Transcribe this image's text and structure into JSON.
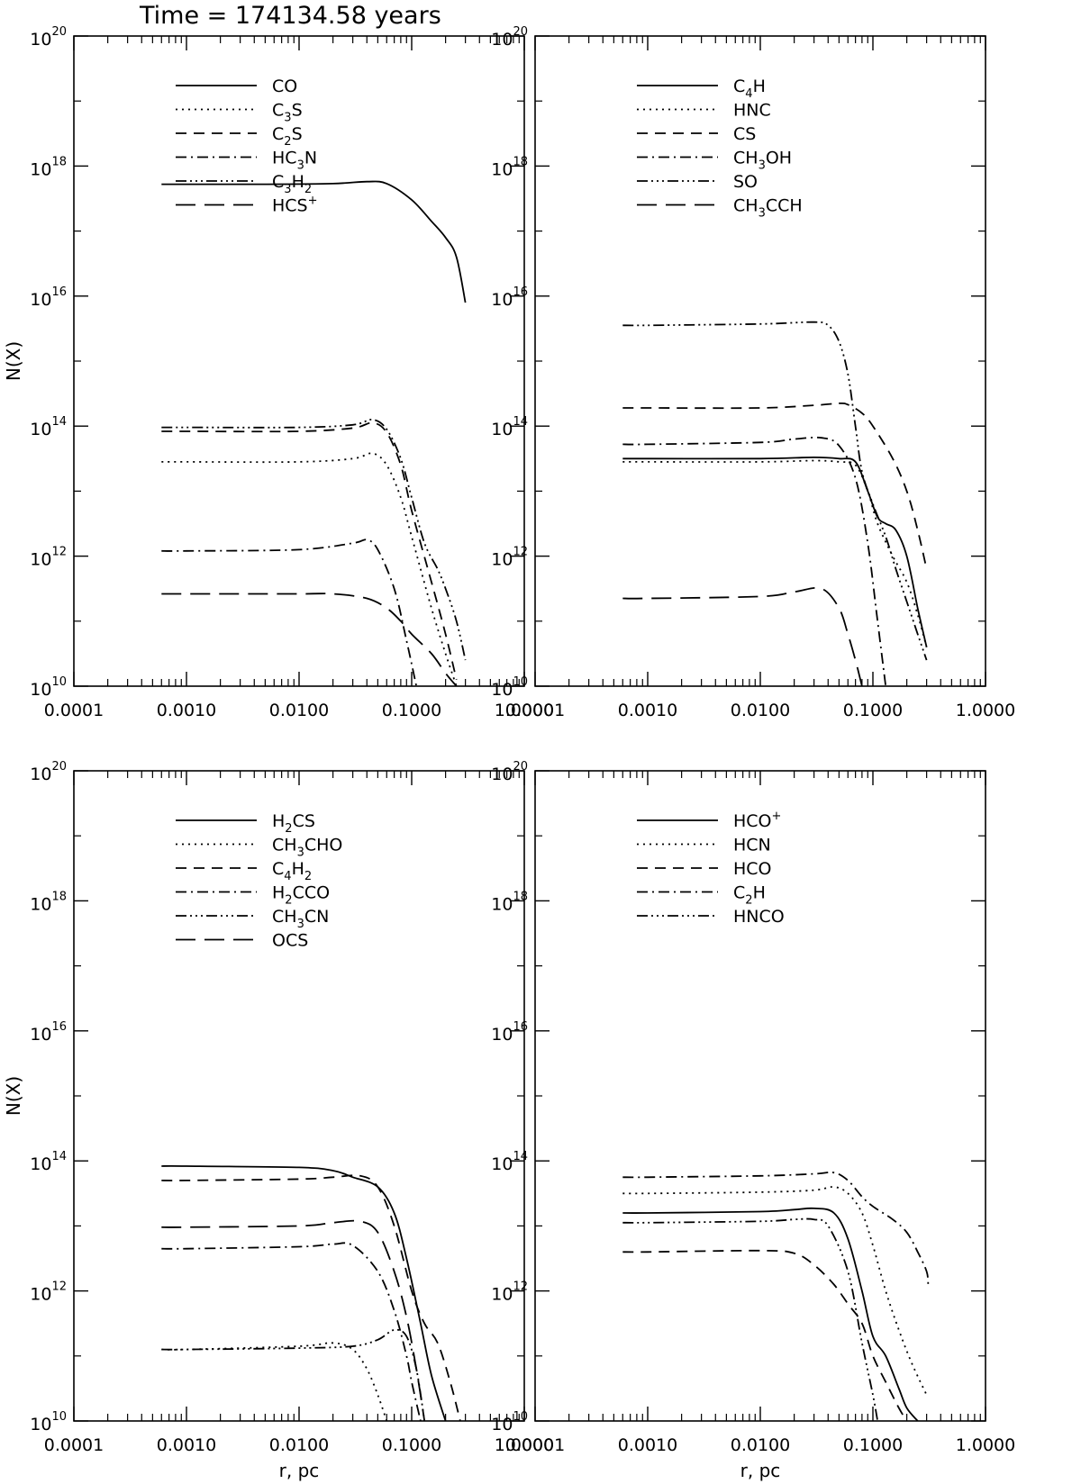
{
  "title": "Time = 174134.58 years",
  "chart_data": [
    {
      "type": "line",
      "xscale": "log",
      "yscale": "log",
      "xlim": [
        0.0001,
        1.0
      ],
      "ylim": [
        10000000000.0,
        1e+20
      ],
      "xlabel": "",
      "ylabel": "N(X)",
      "xticklabels": [
        "0.0001",
        "0.0010",
        "0.0100",
        "0.1000",
        "1.0000"
      ],
      "yticklabels": [
        "20",
        "18",
        "16",
        "14",
        "12",
        "10"
      ],
      "series": [
        {
          "name": "CO",
          "sub": "",
          "style": "solid",
          "x": [
            0.0006,
            0.001,
            0.005,
            0.02,
            0.04,
            0.06,
            0.1,
            0.15,
            0.2,
            0.25,
            0.3
          ],
          "y": [
            17.72,
            17.72,
            17.72,
            17.73,
            17.76,
            17.73,
            17.48,
            17.15,
            16.9,
            16.6,
            15.9
          ]
        },
        {
          "name": "C",
          "sub": "3",
          "tail": "S",
          "style": "dotted",
          "x": [
            0.0006,
            0.001,
            0.01,
            0.03,
            0.045,
            0.06,
            0.08,
            0.1,
            0.15,
            0.2,
            0.25
          ],
          "y": [
            13.45,
            13.45,
            13.45,
            13.5,
            13.58,
            13.4,
            12.9,
            12.3,
            11.2,
            10.5,
            10.0
          ]
        },
        {
          "name": "C",
          "sub": "2",
          "tail": "S",
          "style": "dashed",
          "x": [
            0.0006,
            0.001,
            0.01,
            0.03,
            0.045,
            0.06,
            0.08,
            0.1,
            0.15,
            0.2,
            0.25
          ],
          "y": [
            13.92,
            13.92,
            13.92,
            13.97,
            14.05,
            13.9,
            13.4,
            12.7,
            11.6,
            10.8,
            10.1
          ]
        },
        {
          "name": "HC",
          "sub": "3",
          "tail": "N",
          "style": "dashdot",
          "x": [
            0.0006,
            0.001,
            0.01,
            0.03,
            0.04,
            0.05,
            0.07,
            0.09,
            0.11
          ],
          "y": [
            12.08,
            12.08,
            12.1,
            12.2,
            12.25,
            12.1,
            11.5,
            10.7,
            10.0
          ]
        },
        {
          "name": "C",
          "sub": "3",
          "tail": "H",
          "sub2": "2",
          "style": "dashdotdot",
          "x": [
            0.0006,
            0.001,
            0.01,
            0.03,
            0.045,
            0.06,
            0.08,
            0.1,
            0.13,
            0.17,
            0.2,
            0.25,
            0.3
          ],
          "y": [
            13.98,
            13.98,
            13.98,
            14.02,
            14.1,
            13.95,
            13.5,
            12.9,
            12.2,
            11.8,
            11.5,
            11.0,
            10.4
          ]
        },
        {
          "name": "HCS",
          "sup": "+",
          "style": "longdash",
          "x": [
            0.0006,
            0.001,
            0.01,
            0.02,
            0.04,
            0.06,
            0.08,
            0.1,
            0.15,
            0.2,
            0.25
          ],
          "y": [
            11.42,
            11.42,
            11.42,
            11.42,
            11.35,
            11.2,
            11.0,
            10.8,
            10.5,
            10.2,
            10.0
          ]
        }
      ]
    },
    {
      "type": "line",
      "xscale": "log",
      "yscale": "log",
      "xlim": [
        0.0001,
        1.0
      ],
      "ylim": [
        10000000000.0,
        1e+20
      ],
      "xlabel": "",
      "ylabel": "",
      "xticklabels": [
        "0.0001",
        "0.0010",
        "0.0100",
        "0.1000",
        "1.0000"
      ],
      "yticklabels": [
        "20",
        "18",
        "16",
        "14",
        "12",
        "10"
      ],
      "series": [
        {
          "name": "C",
          "sub": "4",
          "tail": "H",
          "style": "solid",
          "x": [
            0.0006,
            0.001,
            0.01,
            0.03,
            0.05,
            0.07,
            0.09,
            0.11,
            0.13,
            0.16,
            0.2,
            0.25,
            0.3
          ],
          "y": [
            13.5,
            13.5,
            13.5,
            13.52,
            13.5,
            13.45,
            13.0,
            12.6,
            12.5,
            12.4,
            12.0,
            11.2,
            10.6
          ]
        },
        {
          "name": "HNC",
          "sub": "",
          "style": "dotted",
          "x": [
            0.0006,
            0.001,
            0.01,
            0.03,
            0.05,
            0.07,
            0.09,
            0.11,
            0.15,
            0.2,
            0.25,
            0.3
          ],
          "y": [
            13.45,
            13.45,
            13.45,
            13.47,
            13.45,
            13.4,
            13.0,
            12.5,
            12.0,
            11.6,
            11.1,
            10.6
          ]
        },
        {
          "name": "CS",
          "sub": "",
          "style": "dashed",
          "x": [
            0.0006,
            0.001,
            0.01,
            0.03,
            0.05,
            0.06,
            0.08,
            0.1,
            0.15,
            0.2,
            0.25,
            0.3
          ],
          "y": [
            14.28,
            14.28,
            14.28,
            14.32,
            14.35,
            14.33,
            14.2,
            14.0,
            13.5,
            13.0,
            12.4,
            11.8
          ]
        },
        {
          "name": "CH",
          "sub": "3",
          "tail": "OH",
          "style": "dashdot",
          "x": [
            0.0006,
            0.001,
            0.01,
            0.02,
            0.035,
            0.05,
            0.07,
            0.09,
            0.11,
            0.13
          ],
          "y": [
            13.72,
            13.72,
            13.75,
            13.8,
            13.82,
            13.7,
            13.2,
            12.2,
            11.0,
            10.0
          ]
        },
        {
          "name": "SO",
          "sub": "",
          "style": "dashdotdot",
          "x": [
            0.0006,
            0.001,
            0.01,
            0.03,
            0.04,
            0.05,
            0.06,
            0.07,
            0.08,
            0.1,
            0.13,
            0.16,
            0.2,
            0.25,
            0.3
          ],
          "y": [
            15.55,
            15.55,
            15.57,
            15.6,
            15.55,
            15.3,
            14.8,
            14.0,
            13.3,
            12.8,
            12.3,
            11.8,
            11.3,
            10.8,
            10.4
          ]
        },
        {
          "name": "CH",
          "sub": "3",
          "tail": "CCH",
          "style": "longdash",
          "x": [
            0.0006,
            0.001,
            0.01,
            0.02,
            0.035,
            0.05,
            0.06,
            0.07,
            0.08
          ],
          "y": [
            11.35,
            11.35,
            11.38,
            11.45,
            11.5,
            11.2,
            10.8,
            10.4,
            10.0
          ]
        }
      ]
    },
    {
      "type": "line",
      "xscale": "log",
      "yscale": "log",
      "xlim": [
        0.0001,
        1.0
      ],
      "ylim": [
        10000000000.0,
        1e+20
      ],
      "xlabel": "r, pc",
      "ylabel": "N(X)",
      "xticklabels": [
        "0.0001",
        "0.0010",
        "0.0100",
        "0.1000",
        "1.0000"
      ],
      "yticklabels": [
        "20",
        "18",
        "16",
        "14",
        "12",
        "10"
      ],
      "series": [
        {
          "name": "H",
          "sub": "2",
          "tail": "CS",
          "style": "solid",
          "x": [
            0.0006,
            0.001,
            0.01,
            0.02,
            0.03,
            0.05,
            0.07,
            0.09,
            0.12,
            0.15,
            0.2
          ],
          "y": [
            13.92,
            13.92,
            13.9,
            13.85,
            13.75,
            13.6,
            13.2,
            12.5,
            11.5,
            10.7,
            10.0
          ]
        },
        {
          "name": "CH",
          "sub": "3",
          "tail": "CHO",
          "style": "dotted",
          "x": [
            0.0006,
            0.001,
            0.01,
            0.02,
            0.03,
            0.04,
            0.05,
            0.06
          ],
          "y": [
            11.1,
            11.1,
            11.15,
            11.2,
            11.1,
            10.8,
            10.4,
            10.0
          ]
        },
        {
          "name": "C",
          "sub": "4",
          "tail": "H",
          "sub2": "2",
          "style": "dashed",
          "x": [
            0.0006,
            0.001,
            0.01,
            0.02,
            0.035,
            0.05,
            0.07,
            0.1,
            0.13,
            0.17,
            0.22,
            0.27
          ],
          "y": [
            13.7,
            13.7,
            13.72,
            13.75,
            13.77,
            13.6,
            13.0,
            12.0,
            11.5,
            11.2,
            10.6,
            10.0
          ]
        },
        {
          "name": "H",
          "sub": "2",
          "tail": "CCO",
          "style": "dashdot",
          "x": [
            0.0006,
            0.001,
            0.01,
            0.02,
            0.03,
            0.05,
            0.07,
            0.09,
            0.1,
            0.12
          ],
          "y": [
            12.65,
            12.65,
            12.68,
            12.72,
            12.7,
            12.3,
            11.7,
            11.0,
            10.6,
            10.0
          ]
        },
        {
          "name": "CH",
          "sub": "3",
          "tail": "CN",
          "style": "dashdotdot",
          "x": [
            0.0006,
            0.001,
            0.01,
            0.03,
            0.05,
            0.07,
            0.09,
            0.11,
            0.13
          ],
          "y": [
            11.1,
            11.1,
            11.12,
            11.15,
            11.25,
            11.4,
            11.3,
            10.8,
            10.0
          ]
        },
        {
          "name": "OCS",
          "sub": "",
          "style": "longdash",
          "x": [
            0.0006,
            0.001,
            0.01,
            0.02,
            0.035,
            0.05,
            0.07,
            0.09,
            0.11,
            0.13
          ],
          "y": [
            12.98,
            12.98,
            13.0,
            13.05,
            13.07,
            12.9,
            12.3,
            11.6,
            10.8,
            10.0
          ]
        }
      ]
    },
    {
      "type": "line",
      "xscale": "log",
      "yscale": "log",
      "xlim": [
        0.0001,
        1.0
      ],
      "ylim": [
        10000000000.0,
        1e+20
      ],
      "xlabel": "r, pc",
      "ylabel": "",
      "xticklabels": [
        "0.0001",
        "0.0010",
        "0.0100",
        "0.1000",
        "1.0000"
      ],
      "yticklabels": [
        "20",
        "18",
        "16",
        "14",
        "12",
        "10"
      ],
      "series": [
        {
          "name": "HCO",
          "sup": "+",
          "style": "solid",
          "x": [
            0.0006,
            0.001,
            0.01,
            0.02,
            0.03,
            0.045,
            0.06,
            0.08,
            0.1,
            0.13,
            0.17,
            0.2,
            0.25
          ],
          "y": [
            13.2,
            13.2,
            13.22,
            13.25,
            13.27,
            13.2,
            12.8,
            12.0,
            11.3,
            11.0,
            10.5,
            10.2,
            10.0
          ]
        },
        {
          "name": "HCN",
          "sub": "",
          "style": "dotted",
          "x": [
            0.0006,
            0.001,
            0.01,
            0.03,
            0.045,
            0.06,
            0.08,
            0.1,
            0.13,
            0.17,
            0.22,
            0.3
          ],
          "y": [
            13.5,
            13.5,
            13.52,
            13.55,
            13.6,
            13.5,
            13.2,
            12.7,
            12.0,
            11.4,
            10.9,
            10.4
          ]
        },
        {
          "name": "HCO",
          "sub": "",
          "style": "dashed",
          "x": [
            0.0006,
            0.001,
            0.01,
            0.02,
            0.03,
            0.045,
            0.06,
            0.08,
            0.1,
            0.13,
            0.17,
            0.2
          ],
          "y": [
            12.6,
            12.6,
            12.62,
            12.58,
            12.4,
            12.1,
            11.8,
            11.5,
            11.0,
            10.6,
            10.2,
            10.0
          ]
        },
        {
          "name": "C",
          "sub": "2",
          "tail": "H",
          "style": "dashdot",
          "x": [
            0.0006,
            0.001,
            0.01,
            0.03,
            0.045,
            0.06,
            0.08,
            0.1,
            0.15,
            0.2,
            0.25,
            0.3,
            0.31
          ],
          "y": [
            13.75,
            13.75,
            13.77,
            13.8,
            13.82,
            13.7,
            13.45,
            13.3,
            13.1,
            12.9,
            12.6,
            12.3,
            12.1
          ]
        },
        {
          "name": "HNCO",
          "sub": "",
          "style": "dashdotdot",
          "x": [
            0.0006,
            0.001,
            0.01,
            0.02,
            0.03,
            0.04,
            0.06,
            0.08,
            0.1,
            0.11
          ],
          "y": [
            13.05,
            13.05,
            13.07,
            13.1,
            13.1,
            13.0,
            12.3,
            11.2,
            10.4,
            10.0
          ]
        }
      ]
    }
  ]
}
